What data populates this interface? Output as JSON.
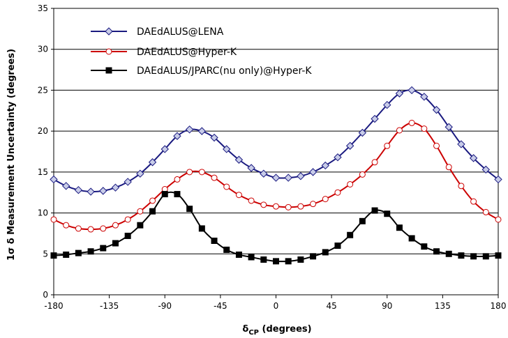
{
  "chart_data": {
    "type": "line",
    "title": "",
    "xlabel_main": "δ",
    "xlabel_sub": "CP",
    "xlabel_suffix": " (degrees)",
    "ylabel": "1σ δ Measurement Uncertainty (degrees)",
    "xlim": [
      -180,
      180
    ],
    "ylim": [
      0,
      35
    ],
    "x_ticks": [
      -180,
      -135,
      -90,
      -45,
      0,
      45,
      90,
      135,
      180
    ],
    "y_ticks": [
      0,
      5,
      10,
      15,
      20,
      25,
      30,
      35
    ],
    "grid": "horizontal",
    "legend_placement": "top-left",
    "series": [
      {
        "name": "DAEdALUS@LENA",
        "color": "#1a1a80",
        "marker": "diamond",
        "x": [
          -180,
          -170,
          -160,
          -150,
          -140,
          -130,
          -120,
          -110,
          -100,
          -90,
          -80,
          -70,
          -60,
          -50,
          -40,
          -30,
          -20,
          -10,
          0,
          10,
          20,
          30,
          40,
          50,
          60,
          70,
          80,
          90,
          100,
          110,
          120,
          130,
          140,
          150,
          160,
          170,
          180
        ],
        "y": [
          14.1,
          13.3,
          12.8,
          12.6,
          12.7,
          13.1,
          13.8,
          14.8,
          16.2,
          17.8,
          19.4,
          20.2,
          20.0,
          19.2,
          17.8,
          16.5,
          15.5,
          14.8,
          14.3,
          14.3,
          14.5,
          15.0,
          15.8,
          16.8,
          18.2,
          19.8,
          21.5,
          23.2,
          24.6,
          25.0,
          24.2,
          22.6,
          20.5,
          18.4,
          16.7,
          15.3,
          14.1
        ]
      },
      {
        "name": "DAEdALUS@Hyper-K",
        "color": "#cc0000",
        "marker": "circle",
        "x": [
          -180,
          -170,
          -160,
          -150,
          -140,
          -130,
          -120,
          -110,
          -100,
          -90,
          -80,
          -70,
          -60,
          -50,
          -40,
          -30,
          -20,
          -10,
          0,
          10,
          20,
          30,
          40,
          50,
          60,
          70,
          80,
          90,
          100,
          110,
          120,
          130,
          140,
          150,
          160,
          170,
          180
        ],
        "y": [
          9.2,
          8.5,
          8.1,
          8.0,
          8.1,
          8.5,
          9.2,
          10.2,
          11.5,
          12.9,
          14.1,
          15.0,
          15.0,
          14.3,
          13.2,
          12.2,
          11.5,
          11.0,
          10.8,
          10.7,
          10.8,
          11.1,
          11.7,
          12.5,
          13.5,
          14.7,
          16.2,
          18.2,
          20.1,
          21.0,
          20.3,
          18.2,
          15.6,
          13.3,
          11.4,
          10.1,
          9.2
        ]
      },
      {
        "name": "DAEdALUS/JPARC(nu only)@Hyper-K",
        "color": "#000000",
        "marker": "square",
        "x": [
          -180,
          -170,
          -160,
          -150,
          -140,
          -130,
          -120,
          -110,
          -100,
          -90,
          -80,
          -70,
          -60,
          -50,
          -40,
          -30,
          -20,
          -10,
          0,
          10,
          20,
          30,
          40,
          50,
          60,
          70,
          80,
          90,
          100,
          110,
          120,
          130,
          140,
          150,
          160,
          170,
          180
        ],
        "y": [
          4.8,
          4.9,
          5.1,
          5.3,
          5.7,
          6.3,
          7.2,
          8.5,
          10.2,
          12.3,
          12.3,
          10.5,
          8.1,
          6.6,
          5.5,
          4.9,
          4.6,
          4.3,
          4.1,
          4.1,
          4.3,
          4.7,
          5.2,
          6.0,
          7.3,
          9.0,
          10.3,
          9.9,
          8.2,
          6.9,
          5.9,
          5.3,
          5.0,
          4.8,
          4.7,
          4.7,
          4.8
        ]
      }
    ]
  }
}
